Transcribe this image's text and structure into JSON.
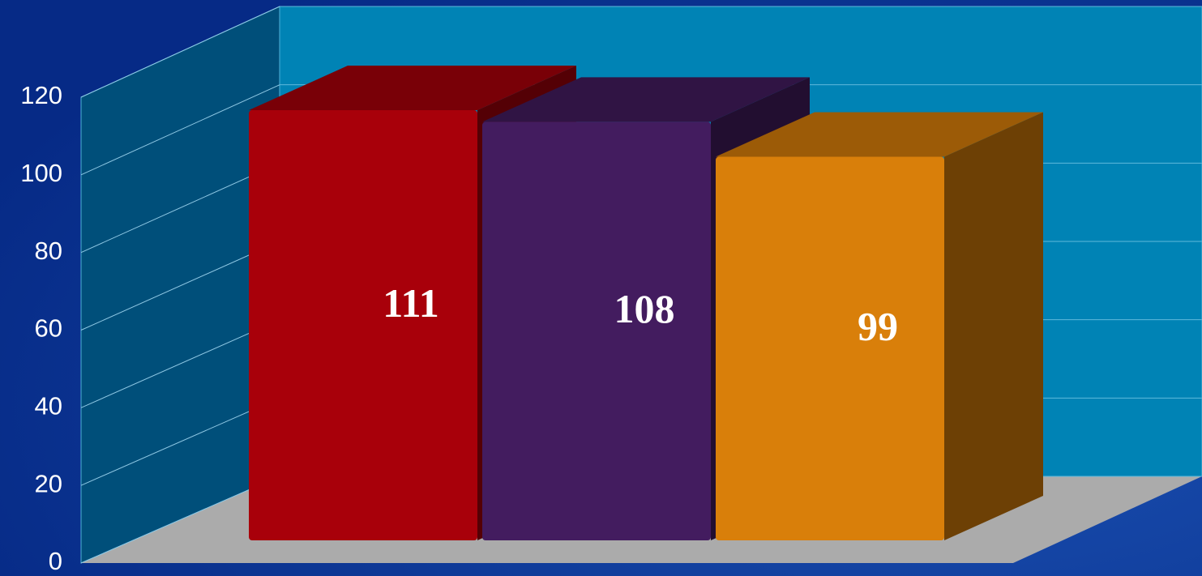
{
  "chart_data": {
    "type": "bar3d",
    "categories": [
      null,
      null,
      null
    ],
    "values": [
      111,
      108,
      99
    ],
    "colors": [
      "#a8000a",
      "#431c5f",
      "#d97f0a"
    ],
    "ylim": [
      0,
      120
    ],
    "yticks": [
      0,
      20,
      40,
      60,
      80,
      100,
      120
    ],
    "grid": true
  }
}
